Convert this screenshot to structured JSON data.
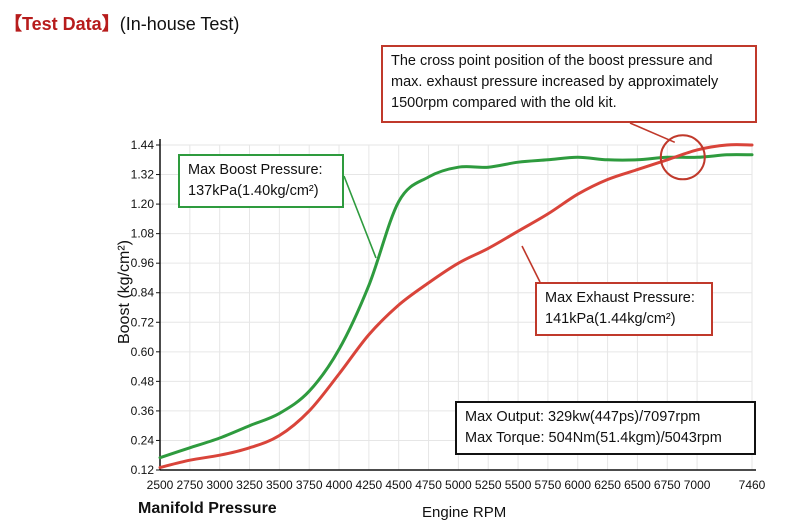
{
  "header": {
    "tag": "【Test Data】",
    "subtitle": "(In-house Test)"
  },
  "callouts": {
    "cross_point": "The cross point position of the boost pressure and\nmax. exhaust pressure increased by approximately\n1500rpm compared with the old kit.",
    "boost": "Max Boost Pressure:\n137kPa(1.40kg/cm²)",
    "exhaust": "Max Exhaust Pressure:\n141kPa(1.44kg/cm²)",
    "output": "Max Output:  329kw(447ps)/7097rpm\nMax Torque:  504Nm(51.4kgm)/5043rpm"
  },
  "chart_data": {
    "type": "line",
    "title": "",
    "xlabel": "Engine RPM",
    "ylabel": "Boost (kg/cm²)",
    "bottom_left_label": "Manifold Pressure",
    "xlim": [
      2500,
      7460
    ],
    "ylim": [
      0.12,
      1.44
    ],
    "x_ticks": [
      2500,
      2750,
      3000,
      3250,
      3500,
      3750,
      4000,
      4250,
      4500,
      4750,
      5000,
      5250,
      5500,
      5750,
      6000,
      6250,
      6500,
      6750,
      7000,
      7460
    ],
    "y_ticks": [
      "0.12",
      "0.24",
      "0.36",
      "0.48",
      "0.60",
      "0.72",
      "0.84",
      "0.96",
      "1.08",
      "1.20",
      "1.32",
      "1.44"
    ],
    "grid": true,
    "colors": {
      "boost": "#2e9b3e",
      "exhaust": "#d9443a",
      "grid": "#e6e6e6",
      "callout_red": "#c0392b"
    },
    "x": [
      2500,
      2750,
      3000,
      3250,
      3500,
      3750,
      4000,
      4250,
      4500,
      4750,
      5000,
      5250,
      5500,
      5750,
      6000,
      6250,
      6500,
      6750,
      7000,
      7250,
      7460
    ],
    "series": [
      {
        "key": "boost",
        "values": [
          0.17,
          0.21,
          0.25,
          0.3,
          0.35,
          0.44,
          0.61,
          0.87,
          1.21,
          1.31,
          1.35,
          1.35,
          1.37,
          1.38,
          1.39,
          1.38,
          1.38,
          1.39,
          1.39,
          1.4,
          1.4
        ]
      },
      {
        "key": "exhaust",
        "values": [
          0.13,
          0.16,
          0.18,
          0.21,
          0.26,
          0.36,
          0.51,
          0.67,
          0.79,
          0.88,
          0.96,
          1.02,
          1.09,
          1.16,
          1.24,
          1.3,
          1.34,
          1.38,
          1.42,
          1.44,
          1.44
        ]
      }
    ],
    "annotation_circle": {
      "x": 6880,
      "y": 1.39
    }
  }
}
